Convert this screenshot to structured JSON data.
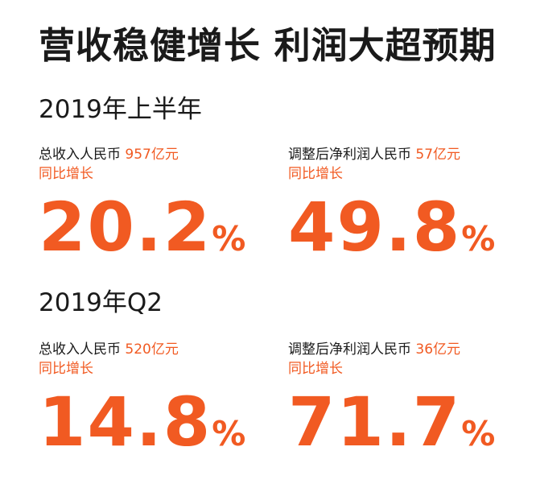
{
  "headline": "营收稳健增长 利润大超预期",
  "sections": [
    {
      "title": "2019年上半年",
      "metrics": [
        {
          "label": "总收入人民币",
          "value": "957亿元",
          "growth_label": "同比增长",
          "growth_value": "20.2",
          "growth_unit": "%"
        },
        {
          "label": "调整后净利润人民币",
          "value": "57亿元",
          "growth_label": "同比增长",
          "growth_value": "49.8",
          "growth_unit": "%"
        }
      ]
    },
    {
      "title": "2019年Q2",
      "metrics": [
        {
          "label": "总收入人民币",
          "value": "520亿元",
          "growth_label": "同比增长",
          "growth_value": "14.8",
          "growth_unit": "%"
        },
        {
          "label": "调整后净利润人民币",
          "value": "36亿元",
          "growth_label": "同比增长",
          "growth_value": "71.7",
          "growth_unit": "%"
        }
      ]
    }
  ],
  "colors": {
    "accent": "#f15a22",
    "text": "#1a1a1a",
    "background": "#ffffff"
  }
}
